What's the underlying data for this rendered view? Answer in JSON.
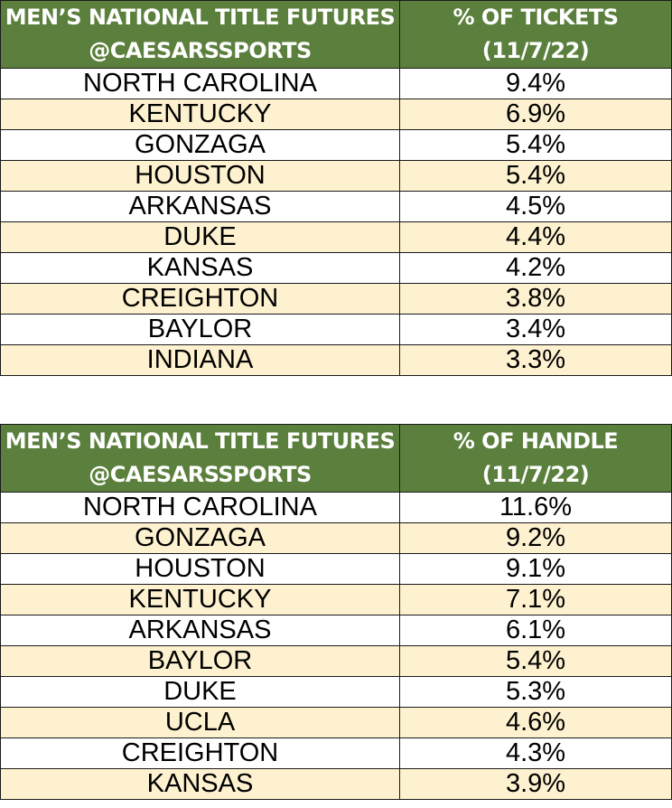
{
  "chart_data": [
    {
      "type": "table",
      "columns": [
        [
          "MEN’S NATIONAL TITLE FUTURES",
          "@CAESARSSPORTS"
        ],
        [
          "% OF TICKETS",
          "(11/7/22)"
        ]
      ],
      "rows": [
        [
          "NORTH CAROLINA",
          "9.4%"
        ],
        [
          "KENTUCKY",
          "6.9%"
        ],
        [
          "GONZAGA",
          "5.4%"
        ],
        [
          "HOUSTON",
          "5.4%"
        ],
        [
          "ARKANSAS",
          "4.5%"
        ],
        [
          "DUKE",
          "4.4%"
        ],
        [
          "KANSAS",
          "4.2%"
        ],
        [
          "CREIGHTON",
          "3.8%"
        ],
        [
          "BAYLOR",
          "3.4%"
        ],
        [
          "INDIANA",
          "3.3%"
        ]
      ]
    },
    {
      "type": "table",
      "columns": [
        [
          "MEN’S NATIONAL TITLE FUTURES",
          "@CAESARSSPORTS"
        ],
        [
          "% OF HANDLE",
          "(11/7/22)"
        ]
      ],
      "rows": [
        [
          "NORTH CAROLINA",
          "11.6%"
        ],
        [
          "GONZAGA",
          "9.2%"
        ],
        [
          "HOUSTON",
          "9.1%"
        ],
        [
          "KENTUCKY",
          "7.1%"
        ],
        [
          "ARKANSAS",
          "6.1%"
        ],
        [
          "BAYLOR",
          "5.4%"
        ],
        [
          "DUKE",
          "5.3%"
        ],
        [
          "UCLA",
          "4.6%"
        ],
        [
          "CREIGHTON",
          "4.3%"
        ],
        [
          "KANSAS",
          "3.9%"
        ]
      ]
    }
  ],
  "colors": {
    "header_bg": "#5b7f3c",
    "header_text": "#ffffff",
    "row_odd": "#ffffff",
    "row_even": "#fdf1cf",
    "border": "#1a1a1a"
  }
}
